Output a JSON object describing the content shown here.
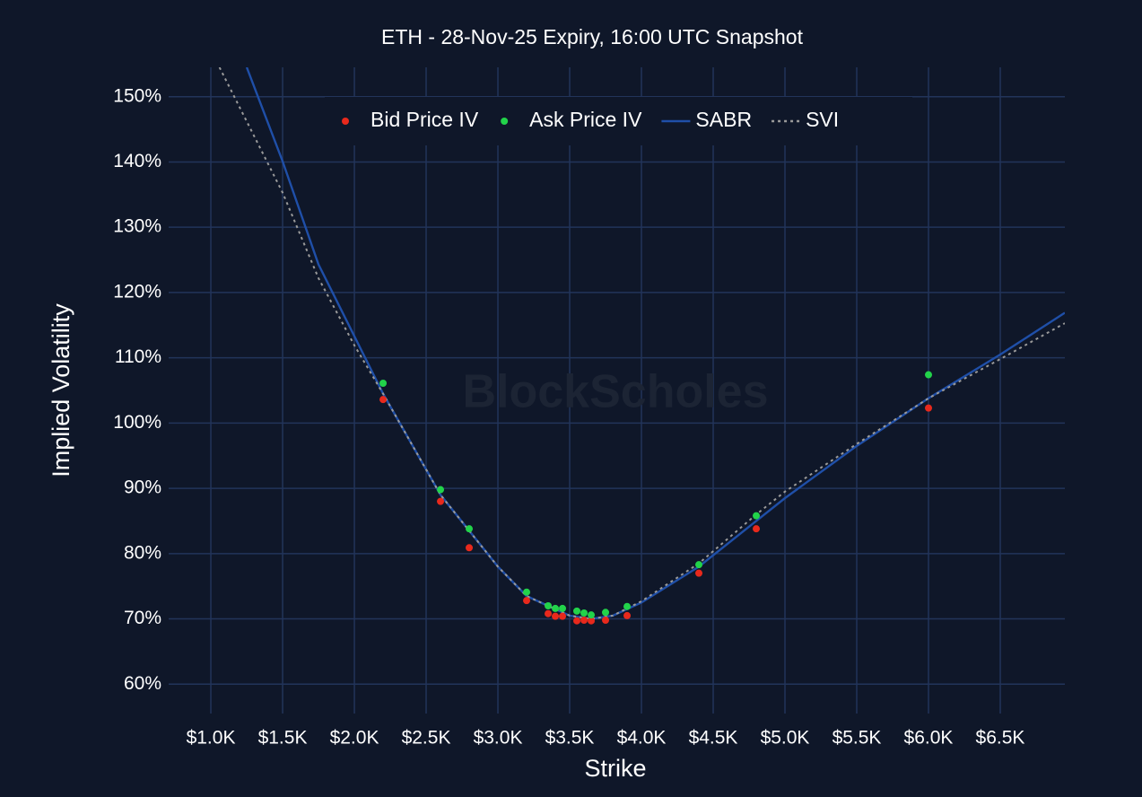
{
  "chart_data": {
    "type": "scatter-line",
    "title": "ETH - 28-Nov-25 Expiry, 16:00 UTC Snapshot",
    "x_label": "Strike",
    "y_label": "Implied Volatility",
    "watermark": "BlockScholes",
    "xlim": [
      706,
      6950
    ],
    "ylim": [
      55.5,
      154.5
    ],
    "xticks": [
      {
        "value": 1000,
        "label": "$1.0K"
      },
      {
        "value": 1500,
        "label": "$1.5K"
      },
      {
        "value": 2000,
        "label": "$2.0K"
      },
      {
        "value": 2500,
        "label": "$2.5K"
      },
      {
        "value": 3000,
        "label": "$3.0K"
      },
      {
        "value": 3500,
        "label": "$3.5K"
      },
      {
        "value": 4000,
        "label": "$4.0K"
      },
      {
        "value": 4500,
        "label": "$4.5K"
      },
      {
        "value": 5000,
        "label": "$5.0K"
      },
      {
        "value": 5500,
        "label": "$5.5K"
      },
      {
        "value": 6000,
        "label": "$6.0K"
      },
      {
        "value": 6500,
        "label": "$6.5K"
      }
    ],
    "yticks": [
      {
        "value": 60,
        "label": "60%"
      },
      {
        "value": 70,
        "label": "70%"
      },
      {
        "value": 80,
        "label": "80%"
      },
      {
        "value": 90,
        "label": "90%"
      },
      {
        "value": 100,
        "label": "100%"
      },
      {
        "value": 110,
        "label": "110%"
      },
      {
        "value": 120,
        "label": "120%"
      },
      {
        "value": 130,
        "label": "130%"
      },
      {
        "value": 140,
        "label": "140%"
      },
      {
        "value": 150,
        "label": "150%"
      }
    ],
    "grid": true,
    "legend": "top",
    "series": [
      {
        "name": "Bid Price IV",
        "color": "#e8291c",
        "mode": "markers",
        "x": [
          2200,
          2600,
          2800,
          3200,
          3350,
          3400,
          3450,
          3550,
          3600,
          3650,
          3750,
          3900,
          4400,
          4800,
          6000
        ],
        "values": [
          103.6,
          88.0,
          80.9,
          72.8,
          70.8,
          70.4,
          70.4,
          69.7,
          69.8,
          69.7,
          69.8,
          70.5,
          77.0,
          83.8,
          102.3
        ]
      },
      {
        "name": "Ask Price IV",
        "color": "#22d34a",
        "mode": "markers",
        "x": [
          2200,
          2600,
          2800,
          3200,
          3350,
          3400,
          3450,
          3550,
          3600,
          3650,
          3750,
          3900,
          4400,
          4800,
          6000
        ],
        "values": [
          106.1,
          89.8,
          83.8,
          74.1,
          72.0,
          71.6,
          71.6,
          71.2,
          70.9,
          70.6,
          71.0,
          71.9,
          78.3,
          85.8,
          107.4
        ]
      },
      {
        "name": "SABR",
        "color": "#1f4fa8",
        "mode": "lines",
        "x": [
          1250,
          1500,
          1750,
          2000,
          2200,
          2600,
          3000,
          3200,
          3500,
          3650,
          3800,
          4000,
          4400,
          4800,
          5000,
          5500,
          6000,
          6500,
          6950
        ],
        "values": [
          154.5,
          140.1,
          124.3,
          113.3,
          104.5,
          89.0,
          78.0,
          73.5,
          70.5,
          70.0,
          70.5,
          72.5,
          78.0,
          85.0,
          88.5,
          96.5,
          103.8,
          110.5,
          116.9
        ]
      },
      {
        "name": "SVI",
        "color": "#9a9a9a",
        "mode": "lines",
        "dash": "dot",
        "x": [
          1060,
          1500,
          1750,
          2000,
          2200,
          2600,
          3000,
          3200,
          3500,
          3650,
          3800,
          4000,
          4400,
          4800,
          5000,
          5500,
          6000,
          6500,
          6950
        ],
        "values": [
          154.5,
          135.3,
          122.2,
          111.9,
          104.5,
          89.0,
          78.0,
          73.5,
          70.5,
          70.0,
          70.5,
          72.7,
          78.5,
          86.0,
          89.5,
          96.8,
          103.8,
          109.8,
          115.3
        ]
      }
    ]
  }
}
